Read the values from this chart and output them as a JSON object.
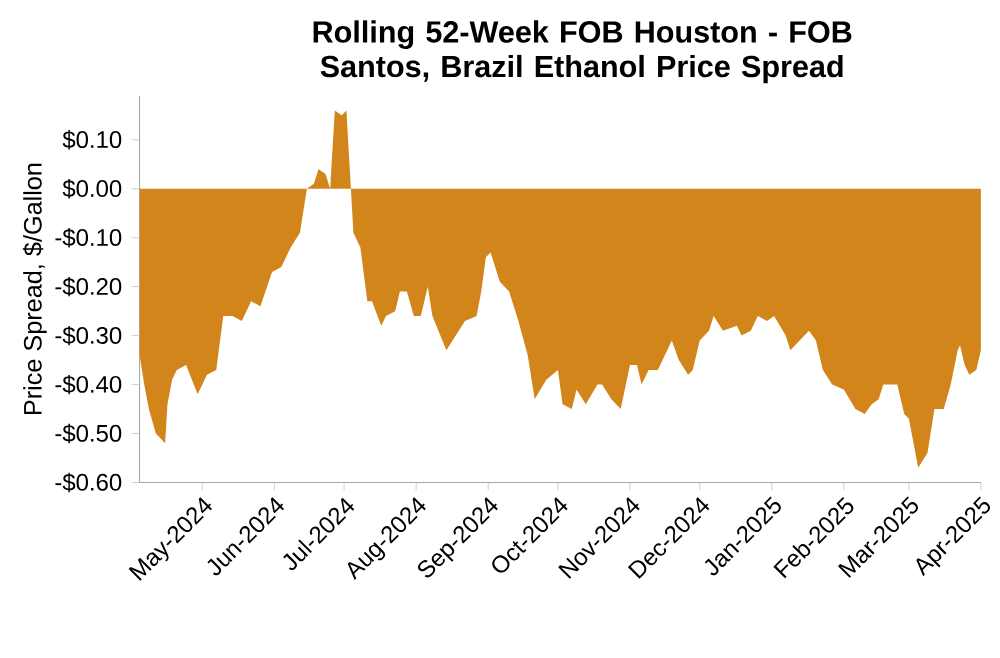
{
  "chart_data": {
    "type": "area",
    "title": "Rolling 52-Week FOB Houston - FOB Santos, Brazil Ethanol Price Spread",
    "ylabel": "Price Spread, $/Gallon",
    "color": "#d2851a",
    "xlim": [
      "2024-04-04",
      "2025-04-01"
    ],
    "ylim": [
      -0.6,
      0.19
    ],
    "xticks": [
      {
        "value": "2024-05-01",
        "label": "May-2024"
      },
      {
        "value": "2024-06-01",
        "label": "Jun-2024"
      },
      {
        "value": "2024-07-01",
        "label": "Jul-2024"
      },
      {
        "value": "2024-08-01",
        "label": "Aug-2024"
      },
      {
        "value": "2024-09-01",
        "label": "Sep-2024"
      },
      {
        "value": "2024-10-01",
        "label": "Oct-2024"
      },
      {
        "value": "2024-11-01",
        "label": "Nov-2024"
      },
      {
        "value": "2024-12-01",
        "label": "Dec-2024"
      },
      {
        "value": "2025-01-01",
        "label": "Jan-2025"
      },
      {
        "value": "2025-02-01",
        "label": "Feb-2025"
      },
      {
        "value": "2025-03-01",
        "label": "Mar-2025"
      },
      {
        "value": "2025-04-01",
        "label": "Apr-2025"
      }
    ],
    "yticks": [
      {
        "value": 0.1,
        "label": "$0.10"
      },
      {
        "value": 0,
        "label": "$0.00"
      },
      {
        "value": -0.1,
        "label": "-$0.10"
      },
      {
        "value": -0.2,
        "label": "-$0.20"
      },
      {
        "value": -0.3,
        "label": "-$0.30"
      },
      {
        "value": -0.4,
        "label": "-$0.40"
      },
      {
        "value": -0.5,
        "label": "-$0.50"
      },
      {
        "value": -0.6,
        "label": "-$0.60"
      }
    ],
    "x": [
      "2024-04-04",
      "2024-04-06",
      "2024-04-08",
      "2024-04-11",
      "2024-04-15",
      "2024-04-16",
      "2024-04-18",
      "2024-04-20",
      "2024-04-24",
      "2024-04-29",
      "2024-05-03",
      "2024-05-07",
      "2024-05-10",
      "2024-05-14",
      "2024-05-18",
      "2024-05-22",
      "2024-05-26",
      "2024-05-31",
      "2024-06-04",
      "2024-06-08",
      "2024-06-12",
      "2024-06-15",
      "2024-06-18",
      "2024-06-20",
      "2024-06-23",
      "2024-06-25",
      "2024-06-27",
      "2024-06-30",
      "2024-07-02",
      "2024-07-05",
      "2024-07-08",
      "2024-07-11",
      "2024-07-13",
      "2024-07-17",
      "2024-07-19",
      "2024-07-23",
      "2024-07-25",
      "2024-07-28",
      "2024-07-31",
      "2024-08-03",
      "2024-08-06",
      "2024-08-08",
      "2024-08-14",
      "2024-08-18",
      "2024-08-22",
      "2024-08-27",
      "2024-08-29",
      "2024-08-31",
      "2024-09-02",
      "2024-09-06",
      "2024-09-10",
      "2024-09-14",
      "2024-09-18",
      "2024-09-21",
      "2024-09-26",
      "2024-10-01",
      "2024-10-03",
      "2024-10-07",
      "2024-10-09",
      "2024-10-13",
      "2024-10-18",
      "2024-10-20",
      "2024-10-24",
      "2024-10-28",
      "2024-11-01",
      "2024-11-04",
      "2024-11-06",
      "2024-11-09",
      "2024-11-13",
      "2024-11-19",
      "2024-11-22",
      "2024-11-26",
      "2024-11-28",
      "2024-12-01",
      "2024-12-05",
      "2024-12-07",
      "2024-12-11",
      "2024-12-17",
      "2024-12-19",
      "2024-12-23",
      "2024-12-26",
      "2024-12-30",
      "2025-01-02",
      "2025-01-07",
      "2025-01-09",
      "2025-01-13",
      "2025-01-17",
      "2025-01-20",
      "2025-01-23",
      "2025-01-27",
      "2025-02-01",
      "2025-02-06",
      "2025-02-10",
      "2025-02-13",
      "2025-02-16",
      "2025-02-18",
      "2025-02-20",
      "2025-02-24",
      "2025-02-27",
      "2025-03-01",
      "2025-03-03",
      "2025-03-05",
      "2025-03-09",
      "2025-03-12",
      "2025-03-16",
      "2025-03-19",
      "2025-03-22",
      "2025-03-23",
      "2025-03-25",
      "2025-03-27",
      "2025-03-30",
      "2025-04-01"
    ],
    "values": [
      -0.34,
      -0.4,
      -0.45,
      -0.5,
      -0.52,
      -0.44,
      -0.39,
      -0.37,
      -0.36,
      -0.42,
      -0.38,
      -0.37,
      -0.26,
      -0.26,
      -0.27,
      -0.23,
      -0.24,
      -0.17,
      -0.16,
      -0.12,
      -0.09,
      0.0,
      0.01,
      0.04,
      0.03,
      0.0,
      0.16,
      0.15,
      0.16,
      -0.09,
      -0.12,
      -0.23,
      -0.23,
      -0.28,
      -0.26,
      -0.25,
      -0.21,
      -0.21,
      -0.26,
      -0.26,
      -0.2,
      -0.26,
      -0.33,
      -0.3,
      -0.27,
      -0.26,
      -0.21,
      -0.14,
      -0.13,
      -0.19,
      -0.21,
      -0.27,
      -0.34,
      -0.43,
      -0.39,
      -0.37,
      -0.44,
      -0.45,
      -0.41,
      -0.44,
      -0.4,
      -0.4,
      -0.43,
      -0.45,
      -0.36,
      -0.36,
      -0.4,
      -0.37,
      -0.37,
      -0.31,
      -0.35,
      -0.38,
      -0.37,
      -0.31,
      -0.29,
      -0.26,
      -0.29,
      -0.28,
      -0.3,
      -0.29,
      -0.26,
      -0.27,
      -0.26,
      -0.3,
      -0.33,
      -0.31,
      -0.29,
      -0.31,
      -0.37,
      -0.4,
      -0.41,
      -0.45,
      -0.46,
      -0.44,
      -0.43,
      -0.4,
      -0.4,
      -0.4,
      -0.46,
      -0.47,
      -0.52,
      -0.57,
      -0.54,
      -0.45,
      -0.45,
      -0.4,
      -0.33,
      -0.32,
      -0.36,
      -0.38,
      -0.37,
      -0.33
    ]
  }
}
